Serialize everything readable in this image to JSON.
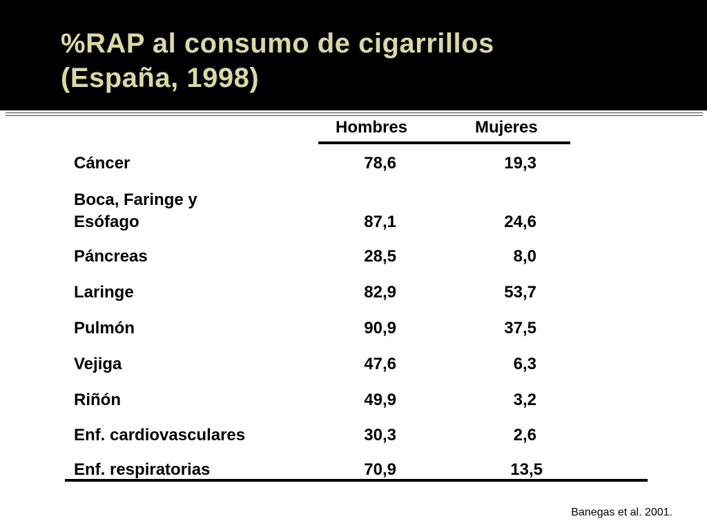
{
  "slide": {
    "title_line1": "%RAP al consumo de cigarrillos",
    "title_line2": "(España, 1998)",
    "source": "Banegas et al. 2001."
  },
  "colors": {
    "title_bar": "#000000",
    "title_text": "#d9d9a3"
  },
  "table": {
    "headers": [
      "Hombres",
      "Mujeres"
    ],
    "rows": [
      {
        "label": [
          "Cáncer"
        ],
        "hombres": "78,6",
        "mujeres": "19,3"
      },
      {
        "label": [
          "Boca, Faringe y",
          "Esófago"
        ],
        "hombres": "87,1",
        "mujeres": "24,6"
      },
      {
        "label": [
          "Páncreas"
        ],
        "hombres": "28,5",
        "mujeres": "8,0"
      },
      {
        "label": [
          "Laringe"
        ],
        "hombres": "82,9",
        "mujeres": "53,7"
      },
      {
        "label": [
          "Pulmón"
        ],
        "hombres": "90,9",
        "mujeres": "37,5"
      },
      {
        "label": [
          "Vejiga"
        ],
        "hombres": "47,6",
        "mujeres": "6,3"
      },
      {
        "label": [
          "Riñón"
        ],
        "hombres": "49,9",
        "mujeres": "3,2"
      },
      {
        "label": [
          "Enf. cardiovasculares"
        ],
        "hombres": "30,3",
        "mujeres": "2,6"
      },
      {
        "label": [
          "Enf. respiratorias"
        ],
        "hombres": "70,9",
        "mujeres": "13,5"
      }
    ]
  }
}
